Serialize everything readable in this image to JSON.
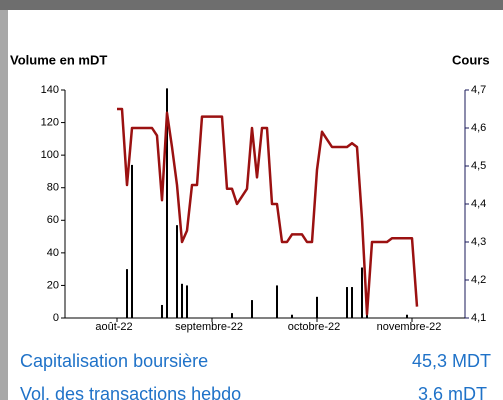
{
  "chart_data": {
    "type": "combo",
    "y_label": "Volume en mDT",
    "y2_label": "Cours",
    "categories": [
      "août-22",
      null,
      null,
      null,
      null,
      null,
      null,
      null,
      null,
      null,
      null,
      null,
      null,
      null,
      null,
      null,
      null,
      null,
      null,
      "septembre-22",
      null,
      null,
      null,
      null,
      null,
      null,
      null,
      null,
      null,
      null,
      null,
      null,
      null,
      null,
      null,
      null,
      null,
      null,
      null,
      null,
      "octobre-22",
      null,
      null,
      null,
      null,
      null,
      null,
      null,
      null,
      null,
      null,
      null,
      null,
      null,
      null,
      null,
      null,
      null,
      null,
      "novembre-22",
      null
    ],
    "series": [
      {
        "type": "bar",
        "color": "#000000",
        "values": [
          0,
          0,
          30,
          94,
          0,
          0,
          0,
          0,
          0,
          8,
          141,
          0,
          57,
          21,
          20,
          0,
          0,
          0,
          0,
          0,
          0,
          0,
          0,
          3,
          0,
          0,
          0,
          11,
          0,
          0,
          0,
          0,
          20,
          0,
          0,
          2,
          0,
          0,
          0,
          0,
          13,
          0,
          0,
          0,
          0,
          0,
          19,
          19,
          0,
          31,
          4,
          0,
          0,
          0,
          0,
          0,
          0,
          0,
          2,
          0,
          0
        ]
      },
      {
        "type": "line",
        "axis": "y2",
        "color": "#9b1111",
        "values": [
          4.65,
          4.65,
          4.45,
          4.6,
          4.6,
          4.6,
          4.6,
          4.6,
          4.58,
          4.41,
          4.64,
          4.55,
          4.45,
          4.3,
          4.33,
          4.45,
          4.45,
          4.63,
          4.63,
          4.63,
          4.63,
          4.63,
          4.44,
          4.44,
          4.4,
          4.42,
          4.44,
          4.6,
          4.47,
          4.6,
          4.6,
          4.4,
          4.4,
          4.3,
          4.3,
          4.32,
          4.32,
          4.32,
          4.3,
          4.3,
          4.49,
          4.59,
          4.57,
          4.55,
          4.55,
          4.55,
          4.55,
          4.56,
          4.55,
          4.36,
          4.11,
          4.3,
          4.3,
          4.3,
          4.3,
          4.31,
          4.31,
          4.31,
          4.31,
          4.31,
          4.13
        ]
      }
    ],
    "ylim": [
      0,
      140
    ],
    "yticks": [
      0,
      20,
      40,
      60,
      80,
      100,
      120,
      140
    ],
    "y2lim": [
      4.1,
      4.7
    ],
    "y2ticks": [
      {
        "value": 4.1,
        "label": "4,1"
      },
      {
        "value": 4.2,
        "label": "4,2"
      },
      {
        "value": 4.3,
        "label": "4,3"
      },
      {
        "value": 4.4,
        "label": "4,4"
      },
      {
        "value": 4.5,
        "label": "4,5"
      },
      {
        "value": 4.6,
        "label": "4,6"
      },
      {
        "value": 4.7,
        "label": "4,7"
      }
    ]
  },
  "stats": [
    {
      "label": "Capitalisation boursière",
      "value": "45,3 MDT"
    },
    {
      "label": "Vol. des transactions hebdo",
      "value": "3,6 mDT"
    }
  ]
}
